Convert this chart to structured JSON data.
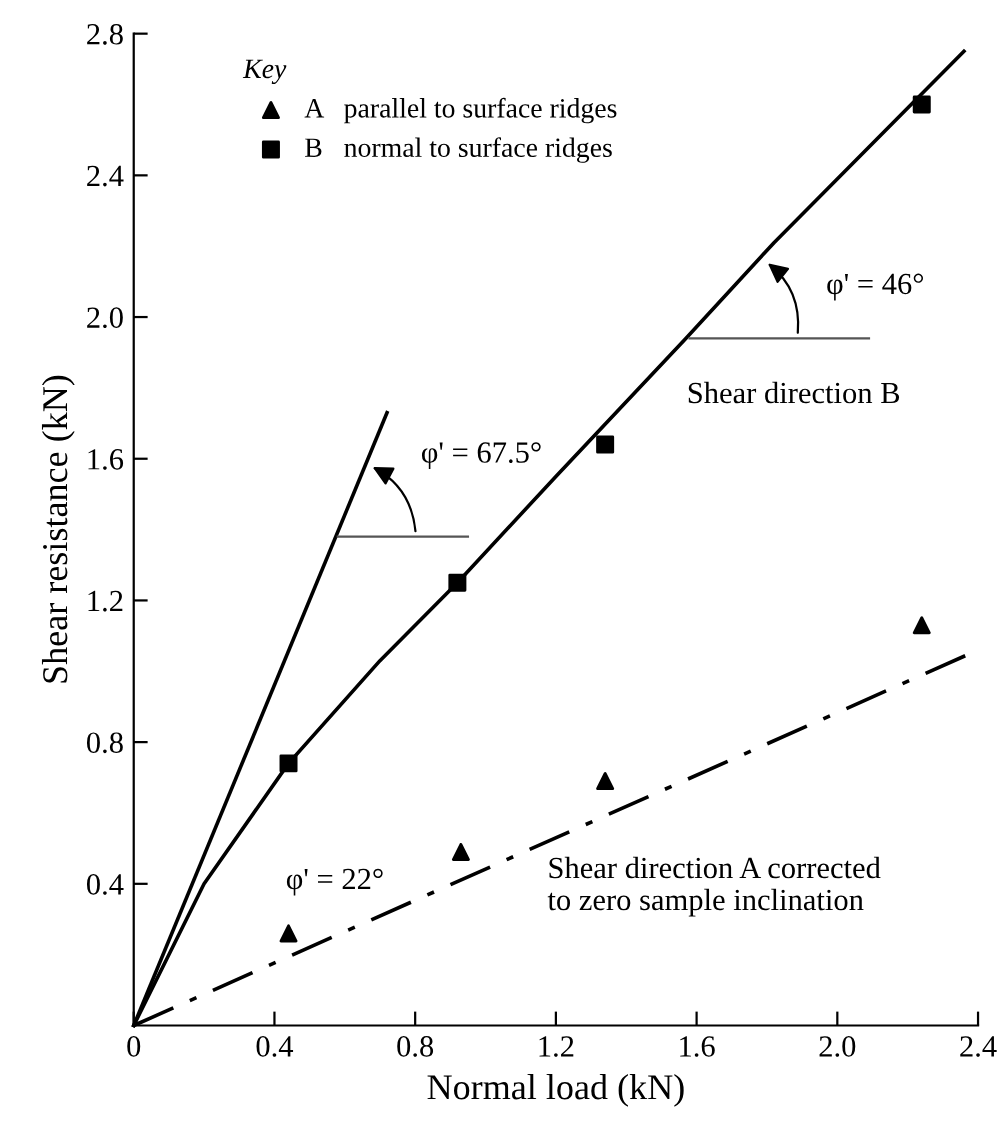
{
  "chart_data": {
    "type": "scatter",
    "xlabel": "Normal load (kN)",
    "ylabel": "Shear resistance (kN)",
    "legend_title": "Key",
    "xlim": [
      0,
      2.4
    ],
    "ylim": [
      0,
      2.8
    ],
    "xticks": [
      0,
      0.4,
      0.8,
      1.2,
      1.6,
      {
        "value": 2,
        "label": "2.0"
      },
      2.4
    ],
    "yticks": [
      0.4,
      0.8,
      1.2,
      1.6,
      {
        "value": 2,
        "label": "2.0"
      },
      2.4,
      2.8
    ],
    "grid": false,
    "legend": "top left",
    "series": [
      {
        "name": "A   parallel to surface ridges",
        "marker": "triangle",
        "color": "#000000",
        "x": [
          0.44,
          0.93,
          1.34,
          2.24
        ],
        "values": [
          0.26,
          0.49,
          0.69,
          1.13
        ]
      },
      {
        "name": "B   normal to surface ridges",
        "marker": "square",
        "color": "#000000",
        "x": [
          0.44,
          0.92,
          1.34,
          2.24
        ],
        "values": [
          0.74,
          1.25,
          1.64,
          2.6
        ]
      },
      {
        "type": "line",
        "line_style": "solid",
        "color": "#000000",
        "x": [
          0,
          0.2,
          0.44,
          0.7,
          0.92,
          1.2,
          1.57,
          1.82,
          2.36
        ],
        "values": [
          0,
          0.4,
          0.74,
          1.03,
          1.25,
          1.55,
          1.94,
          2.21,
          2.75
        ]
      },
      {
        "type": "line",
        "line_style": "solid",
        "color": "#000000",
        "x": [
          0,
          0.72
        ],
        "values": [
          0,
          1.73
        ]
      },
      {
        "type": "line",
        "line_style": "dashdot",
        "color": "#000000",
        "x": [
          0,
          2.4
        ],
        "values": [
          0,
          1.06
        ]
      },
      {
        "type": "line",
        "line_style": "solid",
        "color": "#555555",
        "x": [
          0.58,
          0.95
        ],
        "values": [
          1.38,
          1.38
        ]
      },
      {
        "type": "line",
        "line_style": "solid",
        "color": "#555555",
        "x": [
          1.58,
          2.09
        ],
        "values": [
          1.94,
          1.94
        ]
      }
    ],
    "annotations": [
      "φ' = 67.5°",
      "φ' = 46°",
      "Shear direction B",
      "φ' = 22°",
      "Shear direction A corrected\nto zero sample inclination"
    ]
  }
}
